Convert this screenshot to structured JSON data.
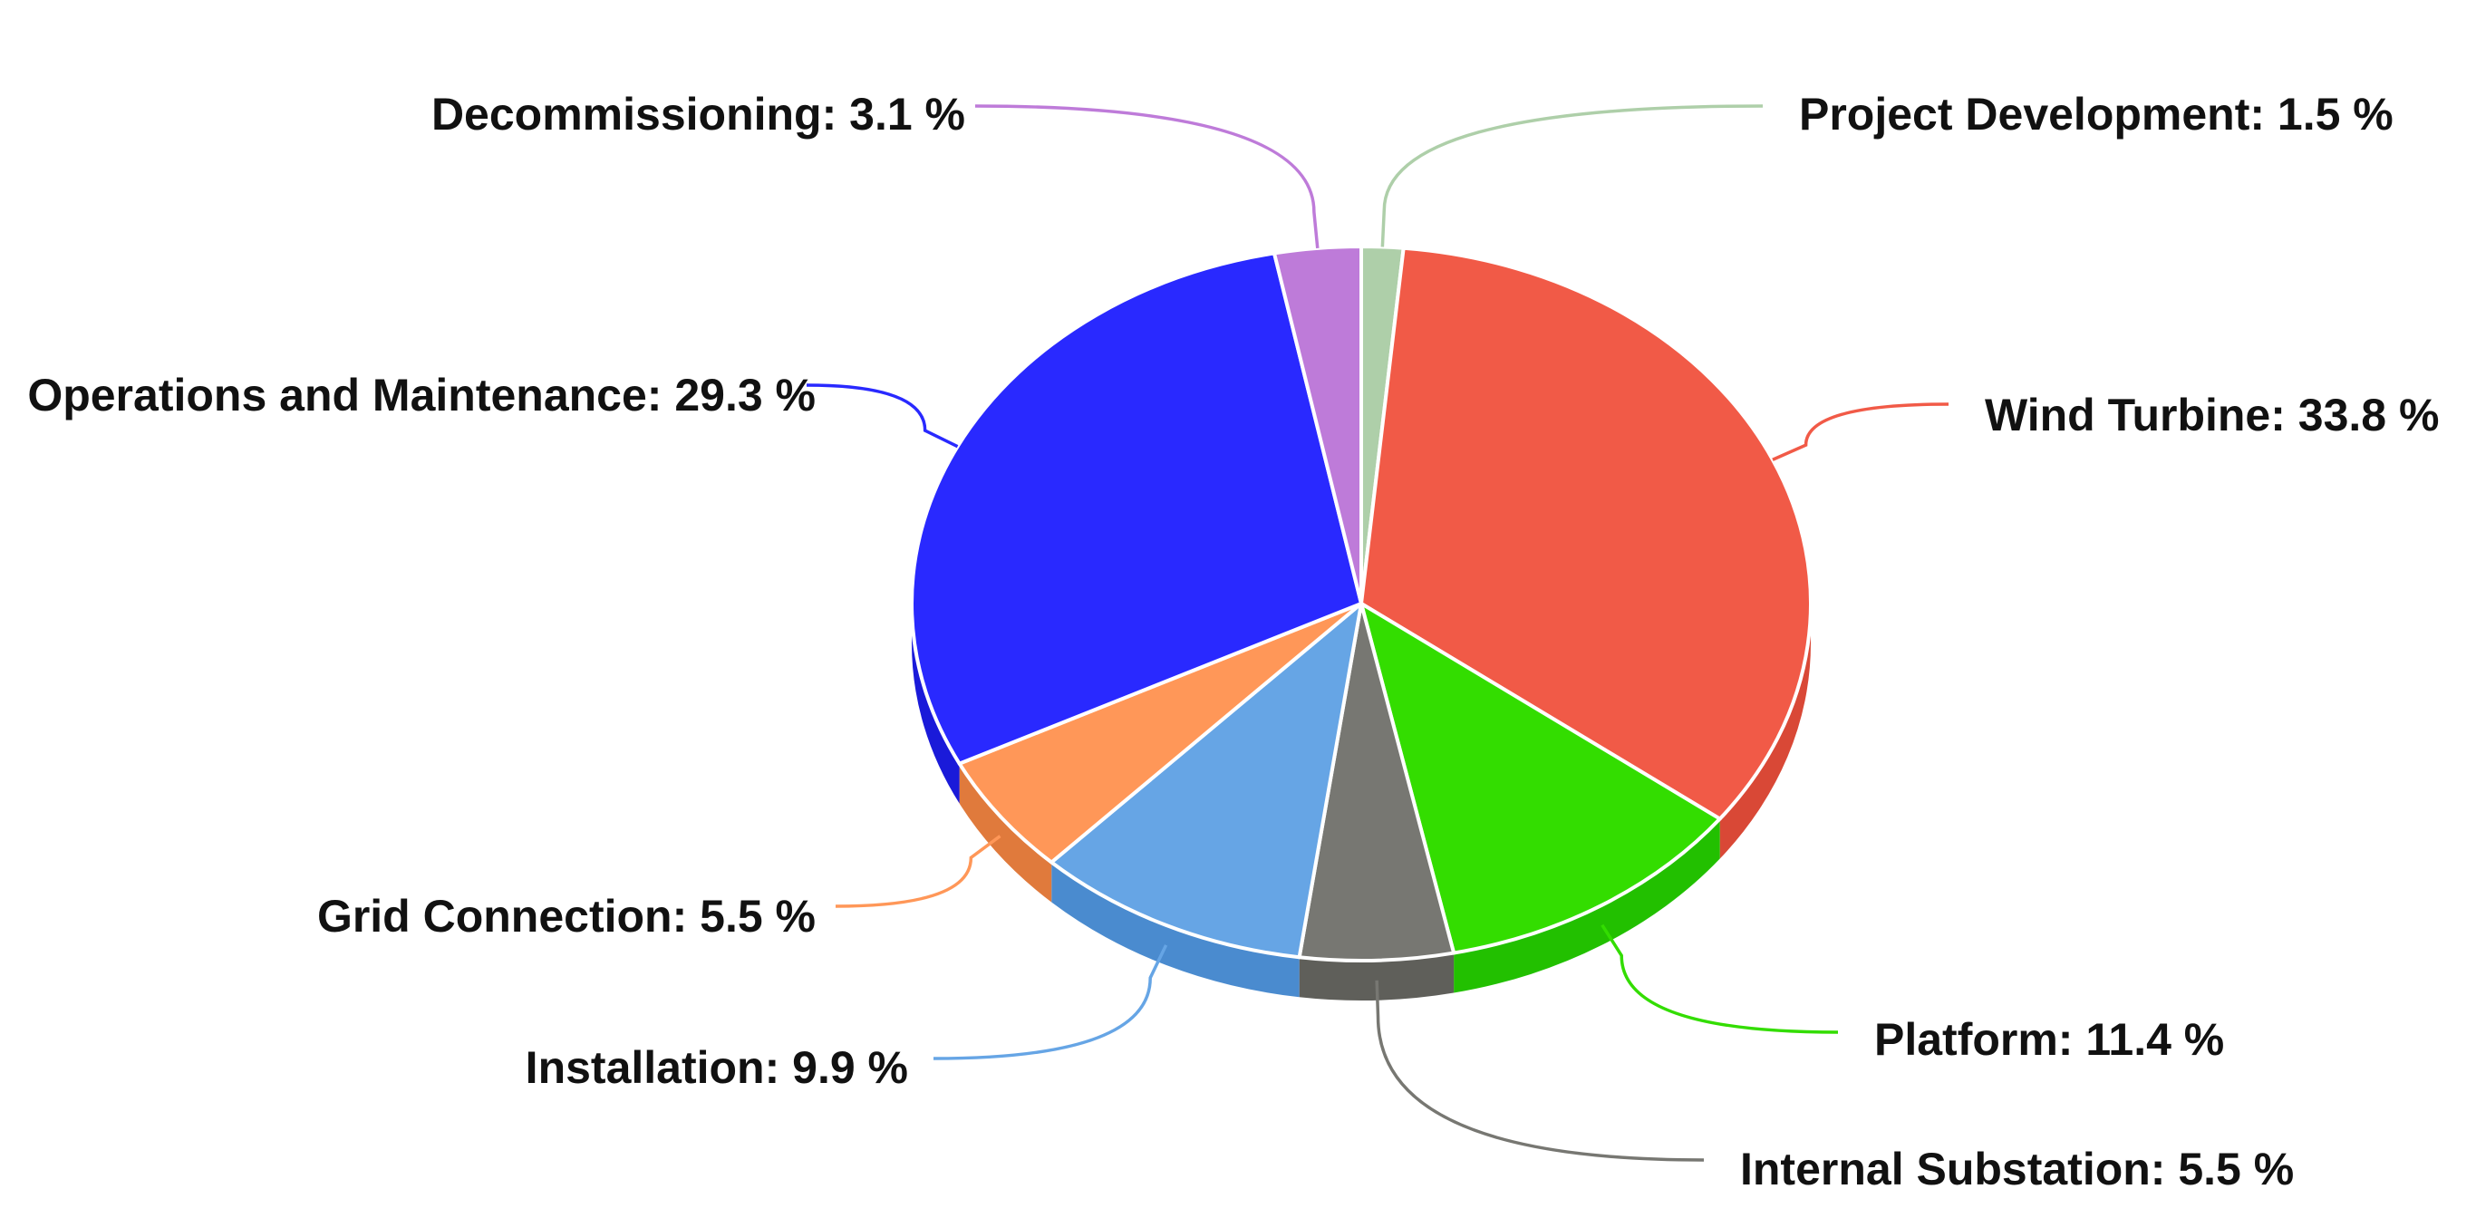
{
  "chart_data": {
    "type": "pie",
    "style": "3d",
    "legend": "none",
    "slices": [
      {
        "label": "Project Development",
        "value": 1.5,
        "display": "Project Development: 1.5 %",
        "color": "#aecfa9",
        "side_color": "#96b591"
      },
      {
        "label": "Wind Turbine",
        "value": 33.8,
        "display": "Wind Turbine: 33.8 %",
        "color": "#f15a47",
        "side_color": "#d94836"
      },
      {
        "label": "Platform",
        "value": 11.4,
        "display": "Platform: 11.4 %",
        "color": "#33dd00",
        "side_color": "#22c000"
      },
      {
        "label": "Internal Substation",
        "value": 5.5,
        "display": "Internal Substation: 5.5 %",
        "color": "#777772",
        "side_color": "#5f5f5a"
      },
      {
        "label": "Installation",
        "value": 9.9,
        "display": "Installation: 9.9 %",
        "color": "#66a5e5",
        "side_color": "#4a8bcf"
      },
      {
        "label": "Grid Connection",
        "value": 5.5,
        "display": "Grid Connection: 5.5 %",
        "color": "#ff9758",
        "side_color": "#e07a3c"
      },
      {
        "label": "Operations and Maintenance",
        "value": 29.3,
        "display": "Operations and Maintenance: 29.3 %",
        "color": "#2929ff",
        "side_color": "#1a1ad9"
      },
      {
        "label": "Decommissioning",
        "value": 3.1,
        "display": "Decommissioning: 3.1 %",
        "color": "#be7bd9",
        "side_color": "#a563c0"
      }
    ]
  }
}
